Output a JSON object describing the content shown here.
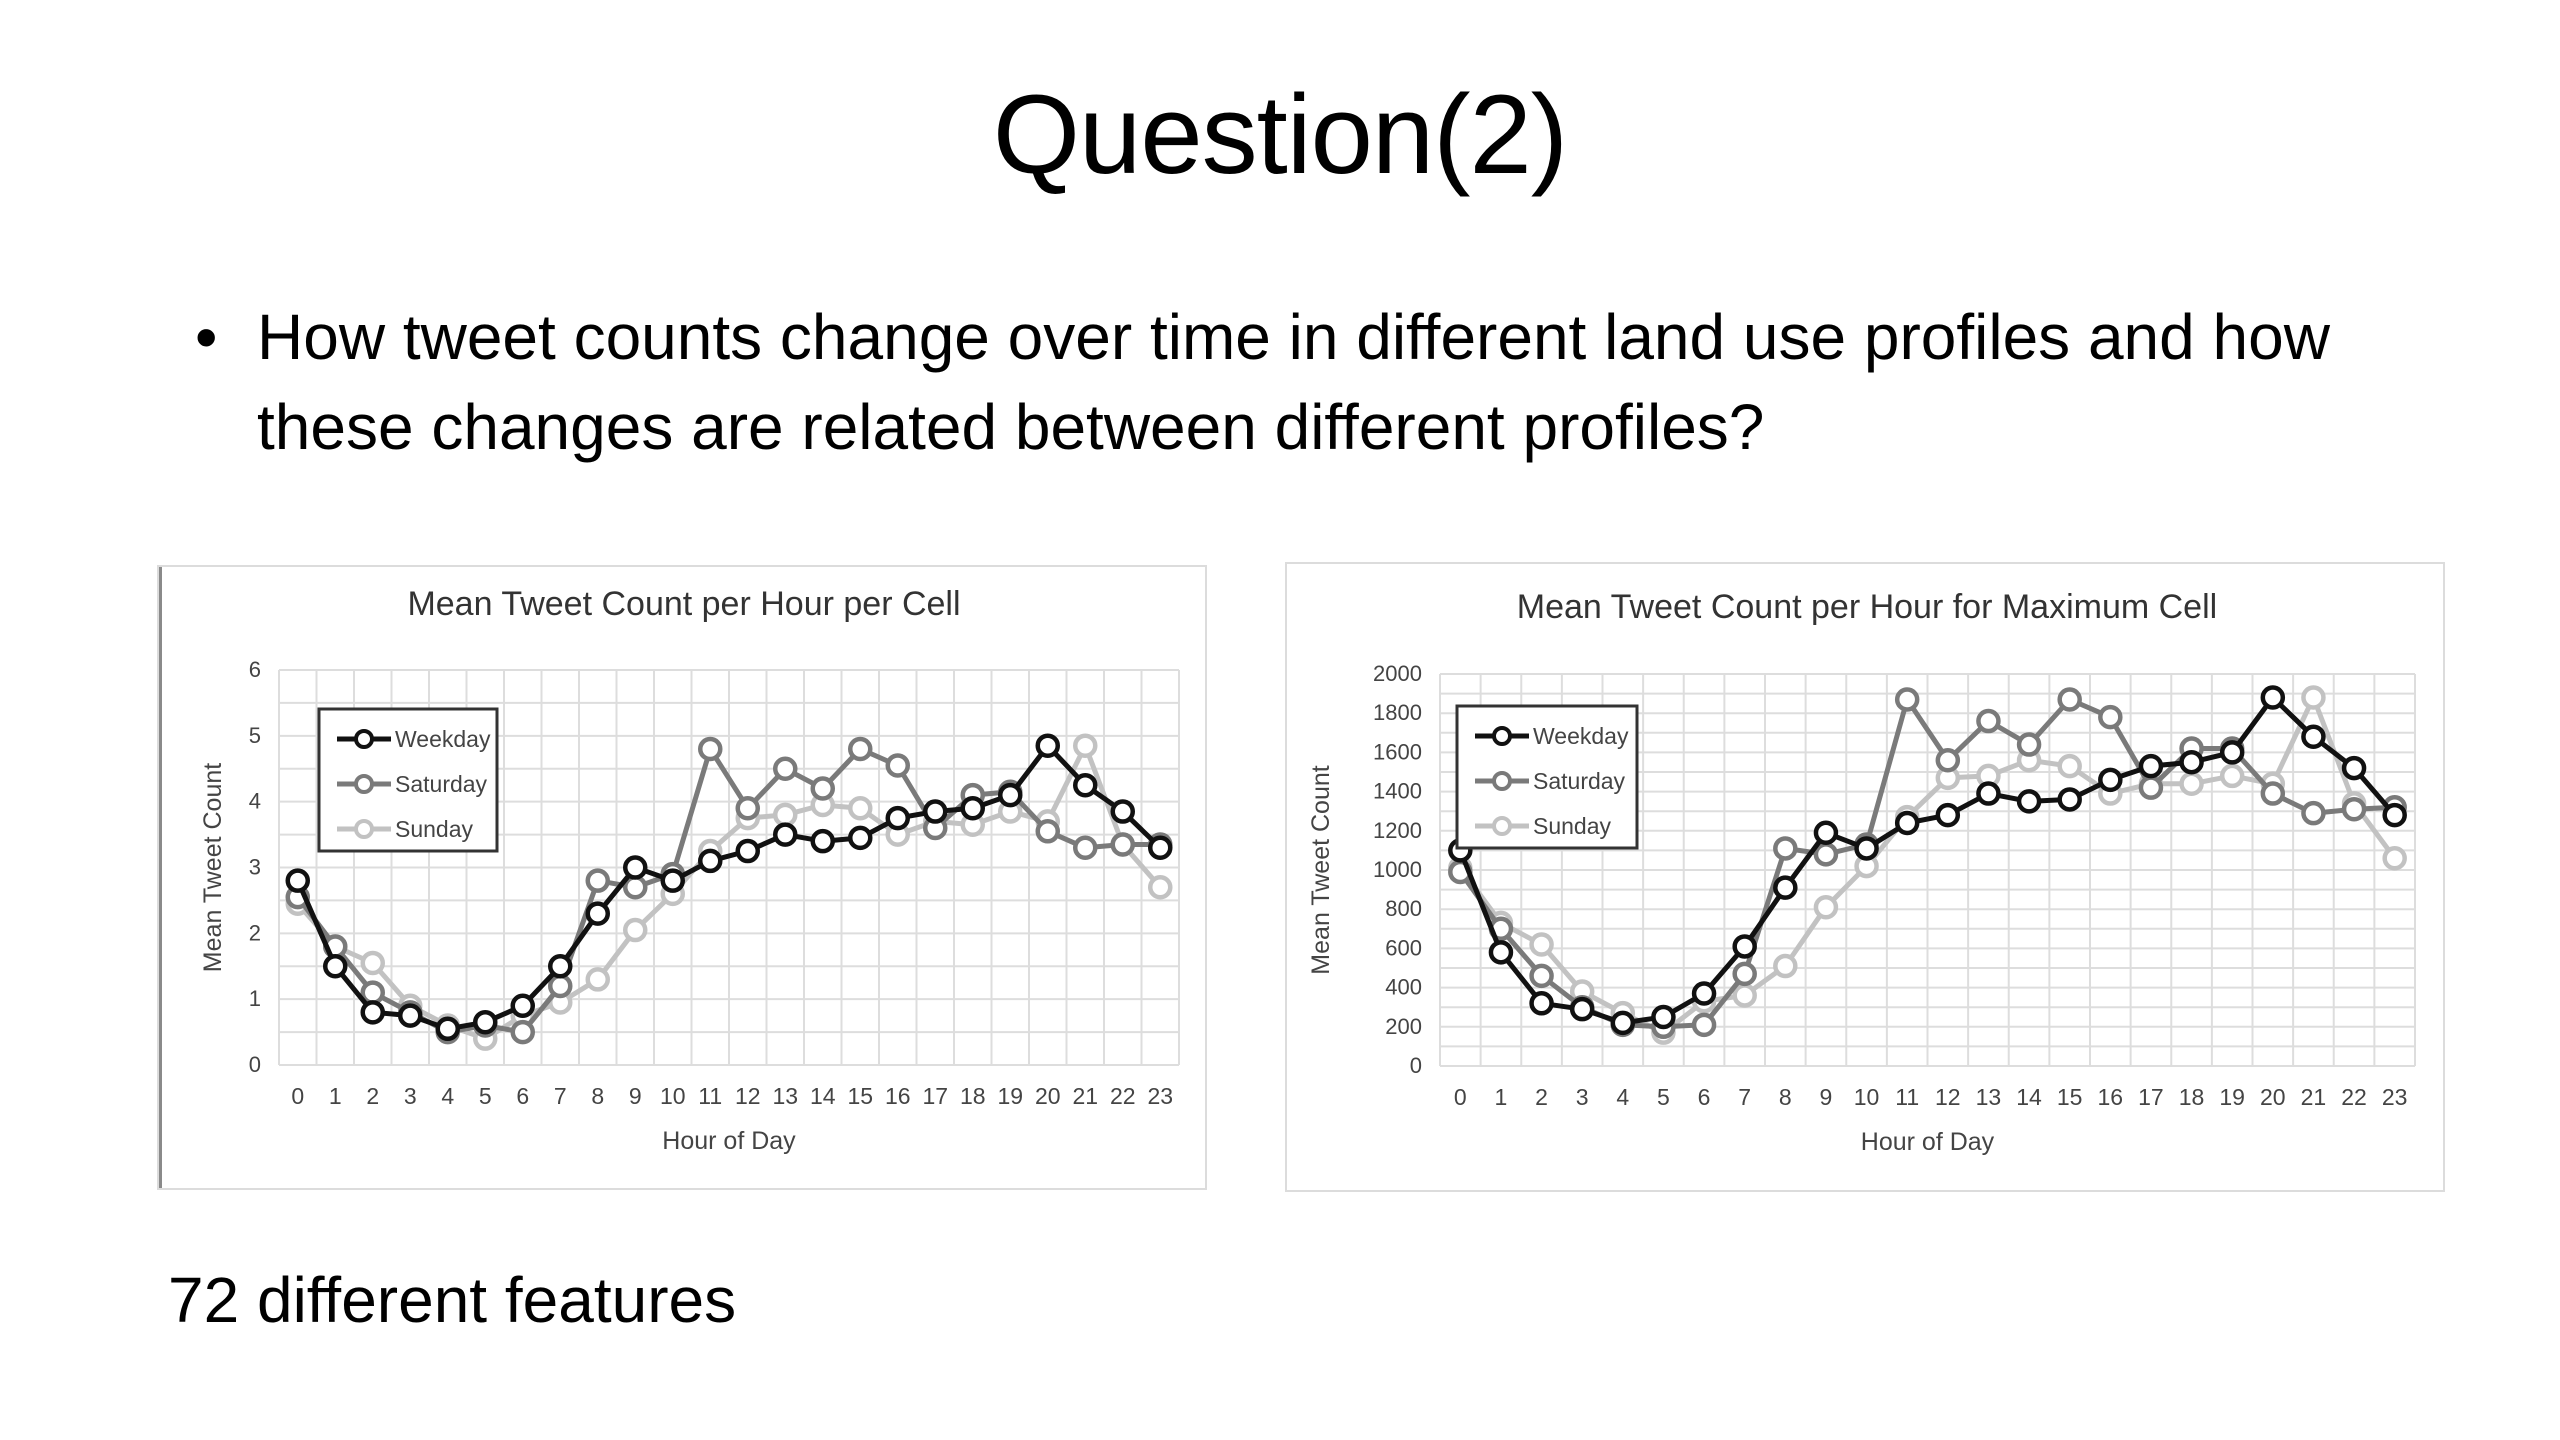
{
  "slide": {
    "title": "Question(2)",
    "bullet": "How tweet counts change over time in different land use profiles and how these changes are related between different profiles?",
    "bullet_symbol": "•",
    "footnote": "72 different features"
  },
  "chart_data": [
    {
      "type": "line",
      "title": "Mean Tweet Count per Hour per Cell",
      "xlabel": "Hour of Day",
      "ylabel": "Mean Tweet Count",
      "categories": [
        "0",
        "1",
        "2",
        "3",
        "4",
        "5",
        "6",
        "7",
        "8",
        "9",
        "10",
        "11",
        "12",
        "13",
        "14",
        "15",
        "16",
        "17",
        "18",
        "19",
        "20",
        "21",
        "22",
        "23"
      ],
      "ylim": [
        0,
        6
      ],
      "yticks": [
        "0",
        "1",
        "2",
        "3",
        "4",
        "5",
        "6"
      ],
      "grid": true,
      "legend": "top-left",
      "series": [
        {
          "name": "Weekday",
          "color": "#111111",
          "values": [
            2.8,
            1.5,
            0.8,
            0.75,
            0.55,
            0.65,
            0.9,
            1.5,
            2.3,
            3.0,
            2.8,
            3.1,
            3.25,
            3.5,
            3.4,
            3.45,
            3.75,
            3.85,
            3.9,
            4.1,
            4.85,
            4.25,
            3.85,
            3.3
          ]
        },
        {
          "name": "Saturday",
          "color": "#7a7a7a",
          "values": [
            2.55,
            1.8,
            1.1,
            0.8,
            0.5,
            0.6,
            0.5,
            1.2,
            2.8,
            2.7,
            2.9,
            4.8,
            3.9,
            4.5,
            4.2,
            4.8,
            4.55,
            3.6,
            4.1,
            4.15,
            3.55,
            3.3,
            3.35,
            3.35
          ]
        },
        {
          "name": "Sunday",
          "color": "#c2c2c2",
          "values": [
            2.45,
            1.8,
            1.55,
            0.9,
            0.6,
            0.4,
            0.75,
            0.95,
            1.3,
            2.05,
            2.6,
            3.25,
            3.75,
            3.8,
            3.95,
            3.9,
            3.5,
            3.7,
            3.65,
            3.85,
            3.7,
            4.85,
            3.35,
            2.7
          ]
        }
      ]
    },
    {
      "type": "line",
      "title": "Mean Tweet Count per Hour for Maximum Cell",
      "xlabel": "Hour of Day",
      "ylabel": "Mean Tweet Count",
      "categories": [
        "0",
        "1",
        "2",
        "3",
        "4",
        "5",
        "6",
        "7",
        "8",
        "9",
        "10",
        "11",
        "12",
        "13",
        "14",
        "15",
        "16",
        "17",
        "18",
        "19",
        "20",
        "21",
        "22",
        "23"
      ],
      "ylim": [
        0,
        2000
      ],
      "yticks": [
        "0",
        "200",
        "400",
        "600",
        "800",
        "1000",
        "1200",
        "1400",
        "1600",
        "1800",
        "2000"
      ],
      "grid": true,
      "legend": "top-left",
      "series": [
        {
          "name": "Weekday",
          "color": "#111111",
          "values": [
            1100,
            580,
            320,
            290,
            220,
            250,
            370,
            610,
            910,
            1190,
            1110,
            1240,
            1280,
            1390,
            1350,
            1360,
            1460,
            1530,
            1550,
            1600,
            1880,
            1680,
            1520,
            1280
          ]
        },
        {
          "name": "Saturday",
          "color": "#7a7a7a",
          "values": [
            990,
            700,
            460,
            300,
            210,
            200,
            210,
            470,
            1110,
            1080,
            1130,
            1870,
            1560,
            1760,
            1640,
            1870,
            1780,
            1420,
            1620,
            1620,
            1390,
            1290,
            1310,
            1320
          ]
        },
        {
          "name": "Sunday",
          "color": "#c2c2c2",
          "values": [
            1010,
            730,
            620,
            380,
            270,
            170,
            330,
            360,
            510,
            810,
            1020,
            1270,
            1470,
            1480,
            1560,
            1530,
            1390,
            1440,
            1440,
            1480,
            1440,
            1880,
            1340,
            1060
          ]
        }
      ]
    }
  ]
}
